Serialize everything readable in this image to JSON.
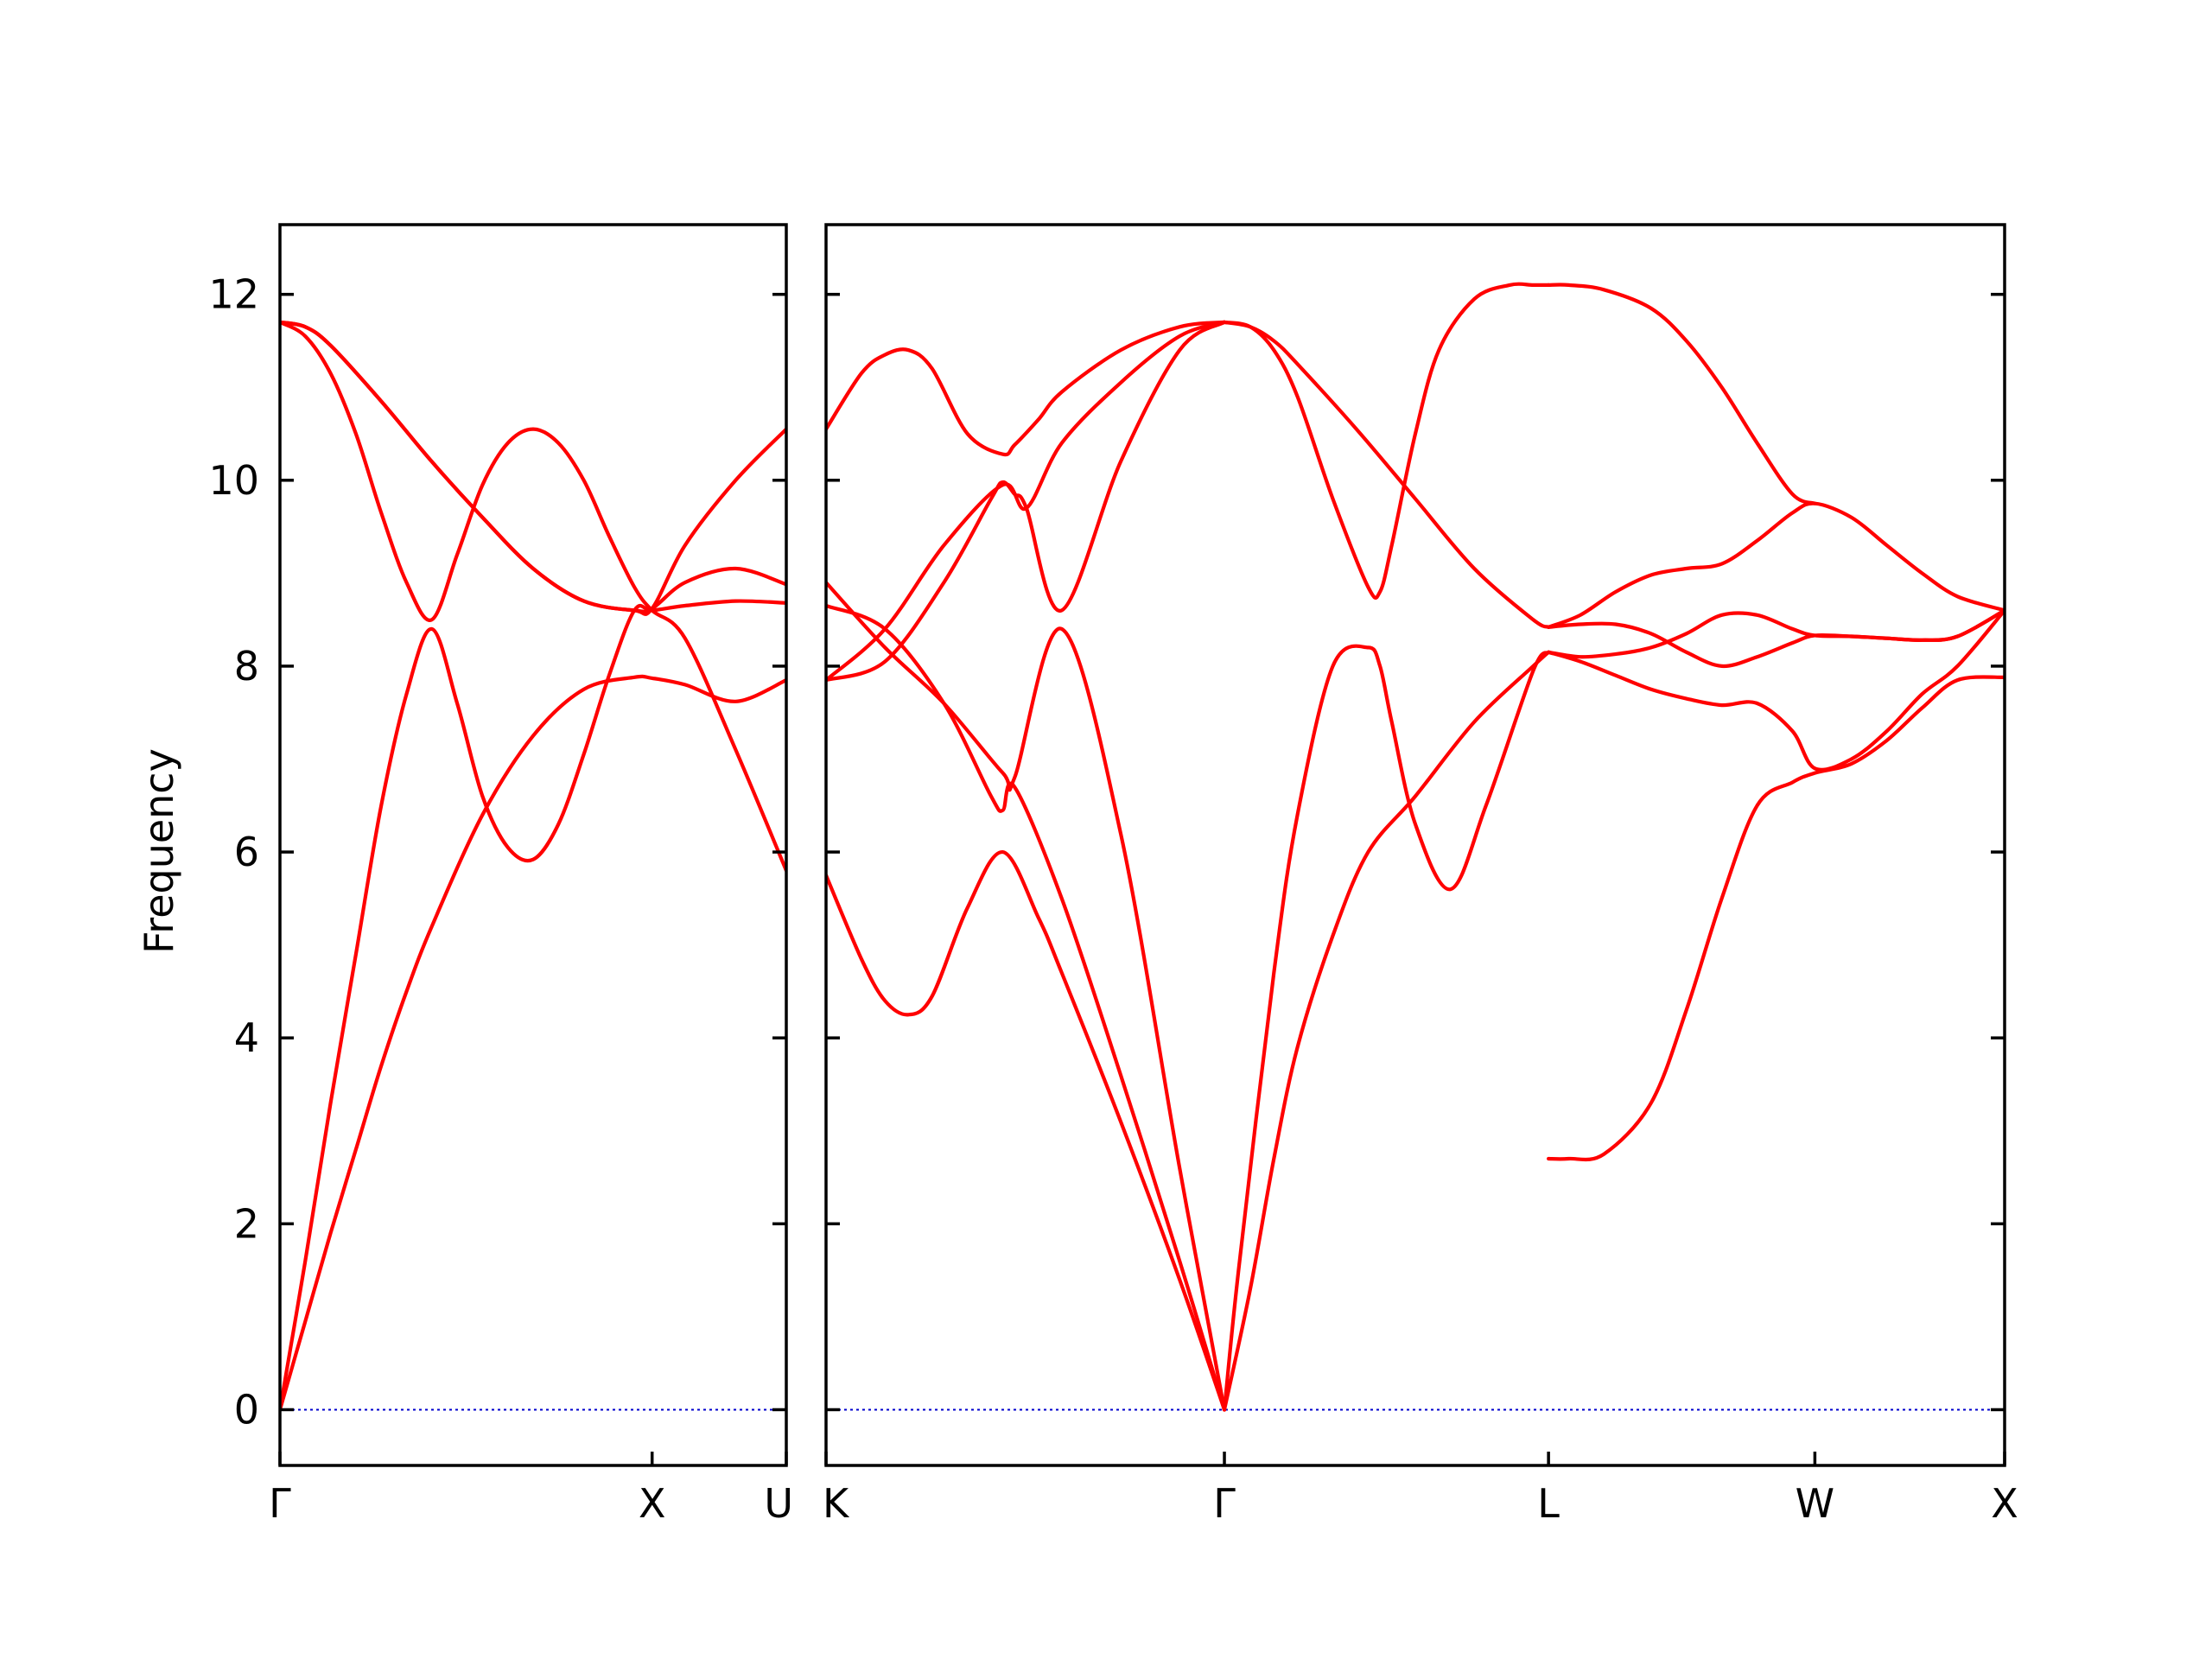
{
  "chart_data": {
    "type": "line",
    "title": "",
    "ylabel": "Frequency",
    "ylim": [
      -0.6,
      12.75
    ],
    "y_ticks": [
      "0",
      "2",
      "4",
      "6",
      "8",
      "10",
      "12"
    ],
    "colors": {
      "bands": "#ff0000",
      "zero_line": "#0000cc",
      "axes": "#000000"
    },
    "panels": [
      {
        "xlim": [
          0,
          1
        ],
        "tick_positions": [
          0,
          0.735,
          1
        ],
        "tick_labels": [
          "Γ",
          "X",
          "U"
        ],
        "zero_line": true,
        "bands": [
          {
            "x": [
              0,
              0.05,
              0.1,
              0.15,
              0.2,
              0.25,
              0.3,
              0.4,
              0.5,
              0.6,
              0.7,
              0.735,
              0.8,
              0.9,
              1
            ],
            "y": [
              0,
              0.95,
              1.9,
              2.8,
              3.7,
              4.5,
              5.2,
              6.4,
              7.25,
              7.75,
              7.88,
              7.87,
              7.8,
              7.62,
              7.85
            ]
          },
          {
            "x": [
              0,
              0.05,
              0.1,
              0.15,
              0.2,
              0.25,
              0.3,
              0.35,
              0.4,
              0.45,
              0.5,
              0.55,
              0.6,
              0.65,
              0.7,
              0.735,
              0.8,
              0.9,
              1
            ],
            "y": [
              0,
              1.6,
              3.3,
              4.9,
              6.5,
              7.7,
              8.4,
              7.6,
              6.6,
              6.05,
              5.92,
              6.3,
              7.05,
              7.9,
              8.6,
              8.6,
              8.65,
              8.7,
              8.68
            ]
          },
          {
            "x": [
              0,
              0.05,
              0.1,
              0.15,
              0.2,
              0.25,
              0.3,
              0.35,
              0.4,
              0.45,
              0.5,
              0.55,
              0.6,
              0.65,
              0.7,
              0.735,
              0.8,
              0.9,
              1
            ],
            "y": [
              11.7,
              11.55,
              11.15,
              10.5,
              9.65,
              8.9,
              8.5,
              9.2,
              9.95,
              10.4,
              10.55,
              10.4,
              10.0,
              9.4,
              8.85,
              8.6,
              8.3,
              7.1,
              5.8
            ]
          },
          {
            "x": [
              0,
              0.05,
              0.1,
              0.2,
              0.3,
              0.4,
              0.5,
              0.6,
              0.7,
              0.735,
              0.8,
              0.9,
              1
            ],
            "y": [
              11.7,
              11.65,
              11.45,
              10.85,
              10.2,
              9.6,
              9.05,
              8.7,
              8.6,
              8.62,
              8.9,
              9.05,
              8.88
            ]
          },
          {
            "x": [
              0,
              0.05,
              0.1,
              0.2,
              0.3,
              0.4,
              0.5,
              0.6,
              0.7,
              0.735,
              0.8,
              0.9,
              1
            ],
            "y": [
              11.7,
              11.65,
              11.45,
              10.85,
              10.2,
              9.6,
              9.05,
              8.7,
              8.6,
              8.62,
              9.3,
              10.0,
              10.55
            ]
          }
        ]
      },
      {
        "xlim": [
          0,
          1
        ],
        "tick_positions": [
          0,
          0.338,
          0.613,
          0.839,
          1
        ],
        "tick_labels": [
          "K",
          "Γ",
          "L",
          "W",
          "X"
        ],
        "zero_line": true,
        "bands": [
          {
            "x": [
              0,
              0.03,
              0.05,
              0.07,
              0.09,
              0.12,
              0.15,
              0.18,
              0.2,
              0.25,
              0.3,
              0.338
            ],
            "y": [
              5.75,
              4.85,
              4.4,
              4.25,
              4.45,
              5.4,
              6.0,
              5.3,
              4.7,
              3.1,
              1.4,
              0
            ]
          },
          {
            "x": [
              0,
              0.05,
              0.1,
              0.14,
              0.15,
              0.16,
              0.2,
              0.25,
              0.3,
              0.338
            ],
            "y": [
              8.65,
              8.4,
              7.6,
              6.6,
              6.45,
              6.7,
              5.5,
              3.6,
              1.6,
              0
            ]
          },
          {
            "x": [
              0,
              0.05,
              0.1,
              0.15,
              0.16,
              0.2,
              0.25,
              0.3,
              0.338
            ],
            "y": [
              8.9,
              8.2,
              7.6,
              6.85,
              6.8,
              8.4,
              6.2,
              2.6,
              0
            ]
          },
          {
            "x": [
              0,
              0.03,
              0.05,
              0.07,
              0.09,
              0.12,
              0.15,
              0.16,
              0.18,
              0.2,
              0.25,
              0.3,
              0.338
            ],
            "y": [
              10.55,
              11.15,
              11.35,
              11.4,
              11.2,
              10.5,
              10.28,
              10.38,
              10.65,
              10.95,
              11.4,
              11.65,
              11.7
            ]
          },
          {
            "x": [
              0,
              0.05,
              0.1,
              0.15,
              0.17,
              0.2,
              0.25,
              0.3,
              0.338
            ],
            "y": [
              7.85,
              8.4,
              9.3,
              9.95,
              9.7,
              10.4,
              11.05,
              11.55,
              11.7
            ]
          },
          {
            "x": [
              0,
              0.05,
              0.1,
              0.14,
              0.15,
              0.16,
              0.17,
              0.2,
              0.25,
              0.3,
              0.338
            ],
            "y": [
              7.85,
              8.05,
              8.9,
              9.8,
              9.98,
              9.85,
              9.7,
              8.6,
              10.2,
              11.4,
              11.7
            ]
          },
          {
            "x": [
              0.338,
              0.35,
              0.38,
              0.4,
              0.43,
              0.46,
              0.47,
              0.48,
              0.5,
              0.53,
              0.56,
              0.6,
              0.613
            ],
            "y": [
              0,
              1.5,
              4.7,
              6.4,
              8.0,
              8.2,
              8.0,
              7.4,
              6.3,
              5.6,
              6.5,
              7.95,
              8.15
            ]
          },
          {
            "x": [
              0.338,
              0.36,
              0.38,
              0.4,
              0.43,
              0.46,
              0.5,
              0.55,
              0.6,
              0.613
            ],
            "y": [
              0,
              1.3,
              2.7,
              3.9,
              5.1,
              6.0,
              6.6,
              7.4,
              8.0,
              8.15
            ]
          },
          {
            "x": [
              0.338,
              0.36,
              0.38,
              0.4,
              0.43,
              0.46,
              0.47,
              0.48,
              0.5,
              0.52,
              0.55,
              0.58,
              0.6,
              0.613
            ],
            "y": [
              11.7,
              11.65,
              11.4,
              10.9,
              9.8,
              8.85,
              8.8,
              9.3,
              10.5,
              11.4,
              11.95,
              12.1,
              12.1,
              12.1
            ]
          },
          {
            "x": [
              0.338,
              0.36,
              0.38,
              0.4,
              0.45,
              0.5,
              0.55,
              0.6,
              0.613
            ],
            "y": [
              11.7,
              11.65,
              11.5,
              11.25,
              10.55,
              9.8,
              9.05,
              8.5,
              8.42
            ]
          },
          {
            "x": [
              0.613,
              0.63,
              0.66,
              0.7,
              0.73,
              0.76,
              0.79,
              0.82,
              0.839,
              0.87,
              0.9,
              0.93,
              0.96,
              1
            ],
            "y": [
              2.7,
              2.7,
              2.75,
              3.3,
              4.3,
              5.5,
              6.5,
              6.75,
              6.85,
              6.95,
              7.2,
              7.55,
              7.85,
              7.88
            ]
          },
          {
            "x": [
              0.613,
              0.64,
              0.67,
              0.7,
              0.73,
              0.76,
              0.79,
              0.82,
              0.839,
              0.87,
              0.9,
              0.93,
              0.96,
              1
            ],
            "y": [
              8.15,
              8.05,
              7.9,
              7.75,
              7.65,
              7.58,
              7.6,
              7.3,
              6.9,
              7.0,
              7.3,
              7.7,
              8.0,
              8.6
            ]
          },
          {
            "x": [
              0.613,
              0.64,
              0.67,
              0.7,
              0.73,
              0.76,
              0.79,
              0.82,
              0.839,
              0.87,
              0.9,
              0.93,
              0.96,
              1
            ],
            "y": [
              8.15,
              8.1,
              8.13,
              8.2,
              8.35,
              8.55,
              8.55,
              8.4,
              8.33,
              8.32,
              8.3,
              8.28,
              8.32,
              8.6
            ]
          },
          {
            "x": [
              0.613,
              0.64,
              0.67,
              0.7,
              0.73,
              0.76,
              0.79,
              0.82,
              0.839,
              0.87,
              0.9,
              0.93,
              0.96,
              1
            ],
            "y": [
              8.42,
              8.45,
              8.45,
              8.35,
              8.15,
              8.0,
              8.1,
              8.25,
              8.33,
              8.32,
              8.3,
              8.28,
              8.32,
              8.6
            ]
          },
          {
            "x": [
              0.613,
              0.64,
              0.67,
              0.7,
              0.73,
              0.76,
              0.79,
              0.82,
              0.839,
              0.87,
              0.9,
              0.93,
              0.96,
              1
            ],
            "y": [
              8.42,
              8.55,
              8.8,
              8.98,
              9.05,
              9.1,
              9.35,
              9.65,
              9.75,
              9.6,
              9.3,
              9.0,
              8.75,
              8.6
            ]
          },
          {
            "x": [
              0.613,
              0.63,
              0.66,
              0.7,
              0.73,
              0.76,
              0.79,
              0.82,
              0.839
            ],
            "y": [
              12.1,
              12.1,
              12.05,
              11.85,
              11.5,
              11.0,
              10.4,
              9.85,
              9.75
            ]
          }
        ]
      }
    ]
  }
}
